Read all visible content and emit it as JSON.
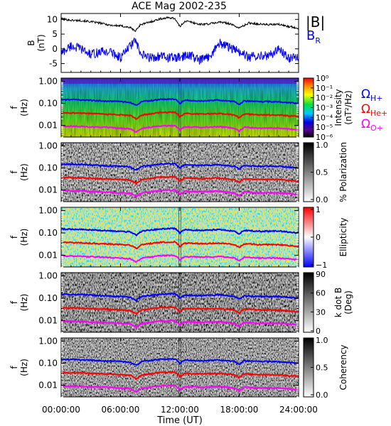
{
  "title": "ACE Mag 2002-235",
  "xlabel": "Time (UT)",
  "colors": {
    "btotal": "#000000",
    "bradial": "#0000ff",
    "h_plus": "#0000ff",
    "he_plus": "#ff0000",
    "o_plus": "#ff00ff"
  },
  "legend": {
    "btotal": "|B|",
    "bradial": "B",
    "bradial_sub": "R",
    "omega": "Ω",
    "h_sub": "H+",
    "he_sub": "He+",
    "o_sub": "O+"
  },
  "chart_data": {
    "type": "line",
    "x_ticks": [
      "00:00:00",
      "06:00:00",
      "12:00:00",
      "18:00:00",
      "24:00:00"
    ],
    "x_range_hours": [
      0,
      24
    ],
    "shared_panel_settings": {
      "y_axis_label_line1": "f",
      "y_axis_label_line2": "(Hz)",
      "y_scale": "log",
      "y_range_hz": [
        0.003,
        1.4
      ],
      "y_tick_labels": [
        "1.00",
        "0.10",
        "0.01"
      ],
      "y_tick_values": [
        1,
        0.1,
        0.01
      ]
    },
    "panels": [
      {
        "id": "field",
        "type": "line",
        "ylabel_line1": "B",
        "ylabel_line2": "(nT)",
        "ylim": [
          -8,
          12
        ],
        "y_ticks": [
          10,
          5,
          0,
          -5
        ],
        "series": [
          {
            "name": "|B|",
            "key": "btotal",
            "x_hours": [
              0,
              1,
              2,
              3,
              4,
              5,
              6,
              7,
              7.5,
              8,
              9,
              10,
              11,
              11.5,
              12,
              12.5,
              13,
              14,
              15,
              16,
              17,
              18,
              19,
              20,
              21,
              22,
              23,
              24
            ],
            "values": [
              10.2,
              9.7,
              9.6,
              9.2,
              8.7,
              8.0,
              7.8,
              7.2,
              6.0,
              8.2,
              9.1,
              10.2,
              10.6,
              10.3,
              7.5,
              9.4,
              9.2,
              8.3,
              8.5,
              9.1,
              8.6,
              7.1,
              8.8,
              8.4,
              8.2,
              8.3,
              7.6,
              7.0
            ]
          },
          {
            "name": "B",
            "key": "bradial",
            "x_hours": [
              0,
              1,
              2,
              3,
              4,
              5,
              6,
              7,
              7.5,
              8,
              9,
              10,
              11,
              12,
              13,
              14,
              15,
              16,
              17,
              18,
              19,
              20,
              21,
              22,
              23,
              24
            ],
            "values": [
              -1.5,
              1.0,
              0.0,
              -2.0,
              -1.0,
              -1.0,
              -3.0,
              1.0,
              3.0,
              -2.0,
              -3.0,
              -2.5,
              -3.0,
              -3.0,
              -2.0,
              -4.0,
              -2.5,
              2.0,
              0.5,
              -1.0,
              -3.0,
              -2.0,
              -2.5,
              0.0,
              -3.0,
              -3.0
            ]
          }
        ]
      },
      {
        "id": "intensity",
        "type": "heatmap",
        "colorbar": {
          "label": "Intensity",
          "units": "(nT²/Hz)",
          "scale": "log",
          "tick_labels": [
            "10⁰",
            "10⁻¹",
            "10⁻²",
            "10⁻³",
            "10⁻⁴",
            "10⁻⁵",
            "10⁻⁶"
          ],
          "range": [
            1e-06,
            1
          ]
        }
      },
      {
        "id": "polarization",
        "type": "heatmap",
        "colorbar": {
          "label": "% Polarization",
          "units": "",
          "scale": "linear",
          "tick_labels": [
            "1.0",
            "0.5",
            "0.0"
          ],
          "range": [
            0,
            1
          ]
        }
      },
      {
        "id": "ellipticity",
        "type": "heatmap",
        "colorbar": {
          "label": "Ellipticity",
          "units": "",
          "scale": "linear",
          "tick_labels": [
            "1",
            "0",
            "−1"
          ],
          "range": [
            -1,
            1
          ]
        }
      },
      {
        "id": "kdotb",
        "type": "heatmap",
        "colorbar": {
          "label": "k dot B",
          "units": "(Deg)",
          "scale": "linear",
          "tick_labels": [
            "90",
            "60",
            "30",
            "0"
          ],
          "range": [
            0,
            90
          ]
        }
      },
      {
        "id": "coherency",
        "type": "heatmap",
        "colorbar": {
          "label": "Coherency",
          "units": "",
          "scale": "linear",
          "tick_labels": [
            "1.0",
            "0.5",
            "0.0"
          ],
          "range": [
            0,
            1
          ]
        }
      }
    ],
    "gyrofrequency_lines": [
      {
        "name": "ΩH+",
        "key": "h_plus",
        "x_hours": [
          0,
          2,
          4,
          6,
          7,
          7.6,
          8.2,
          10,
          11.5,
          12,
          12.5,
          14,
          16,
          17.5,
          18,
          18.5,
          20,
          22,
          24
        ],
        "values_hz": [
          0.15,
          0.145,
          0.13,
          0.12,
          0.11,
          0.08,
          0.12,
          0.15,
          0.16,
          0.1,
          0.14,
          0.13,
          0.14,
          0.12,
          0.09,
          0.13,
          0.12,
          0.12,
          0.1
        ]
      },
      {
        "name": "ΩHe+",
        "key": "he_plus",
        "x_hours": [
          0,
          2,
          4,
          6,
          7,
          7.6,
          8.2,
          10,
          11.5,
          12,
          12.5,
          14,
          16,
          17.5,
          18,
          18.5,
          20,
          22,
          24
        ],
        "values_hz": [
          0.038,
          0.036,
          0.033,
          0.03,
          0.028,
          0.02,
          0.03,
          0.038,
          0.04,
          0.025,
          0.035,
          0.033,
          0.035,
          0.03,
          0.022,
          0.033,
          0.03,
          0.03,
          0.025
        ]
      },
      {
        "name": "ΩO+",
        "key": "o_plus",
        "x_hours": [
          0,
          2,
          4,
          6,
          7,
          7.6,
          8.2,
          10,
          11.5,
          12,
          12.5,
          14,
          16,
          17.5,
          18,
          18.5,
          20,
          22,
          24
        ],
        "values_hz": [
          0.0095,
          0.009,
          0.0083,
          0.0075,
          0.007,
          0.005,
          0.0075,
          0.0095,
          0.01,
          0.0063,
          0.0088,
          0.0083,
          0.0088,
          0.0075,
          0.0055,
          0.0083,
          0.0075,
          0.0075,
          0.0063
        ]
      }
    ]
  }
}
